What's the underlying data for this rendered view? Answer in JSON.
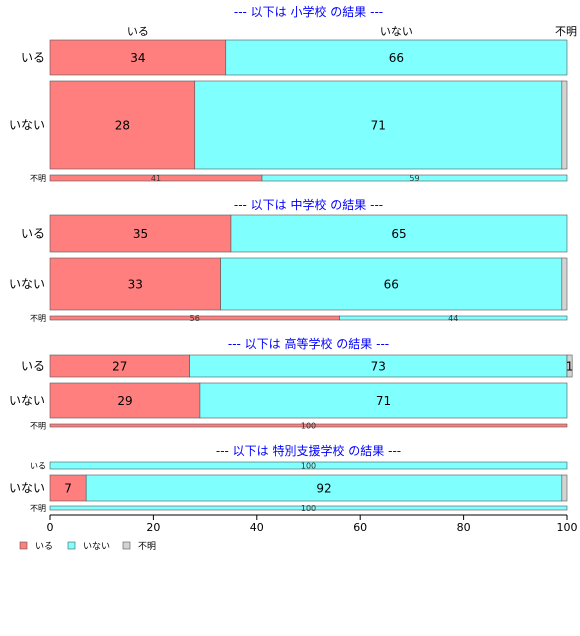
{
  "chart_data": {
    "type": "bar",
    "stacked": true,
    "orientation": "horizontal",
    "normalized_percent": true,
    "series_names": [
      "いる",
      "いない",
      "不明"
    ],
    "colors": {
      "いる": "#ff7f7f",
      "いない": "#80ffff",
      "不明": "#d3d3d3",
      "title": "#0000ff"
    },
    "column_labels": [
      "いる",
      "いない",
      "不明"
    ],
    "xlim": [
      0,
      100
    ],
    "x_ticks": [
      0,
      20,
      40,
      60,
      80,
      100
    ],
    "legend": {
      "position": "bottom-left",
      "entries": [
        "いる",
        "いない",
        "不明"
      ]
    },
    "panels": [
      {
        "title": "--- 以下は 小学校 の結果 ---",
        "rows": [
          {
            "label": "いる",
            "values": [
              34,
              66,
              0
            ],
            "labels": [
              "34",
              "66",
              ""
            ]
          },
          {
            "label": "いない",
            "values": [
              28,
              71,
              1
            ],
            "labels": [
              "28",
              "71",
              ""
            ]
          },
          {
            "label": "不明",
            "values": [
              41,
              59,
              0
            ],
            "labels": [
              "41",
              "59",
              ""
            ]
          }
        ]
      },
      {
        "title": "--- 以下は 中学校 の結果 ---",
        "rows": [
          {
            "label": "いる",
            "values": [
              35,
              65,
              0
            ],
            "labels": [
              "35",
              "65",
              ""
            ]
          },
          {
            "label": "いない",
            "values": [
              33,
              66,
              1
            ],
            "labels": [
              "33",
              "66",
              ""
            ]
          },
          {
            "label": "不明",
            "values": [
              56,
              44,
              0
            ],
            "labels": [
              "56",
              "44",
              ""
            ]
          }
        ]
      },
      {
        "title": "--- 以下は 高等学校 の結果 ---",
        "rows": [
          {
            "label": "いる",
            "values": [
              27,
              73,
              1
            ],
            "labels": [
              "27",
              "73",
              "1"
            ]
          },
          {
            "label": "いない",
            "values": [
              29,
              71,
              0
            ],
            "labels": [
              "29",
              "71",
              ""
            ]
          },
          {
            "label": "不明",
            "values": [
              100,
              0,
              0
            ],
            "labels": [
              "100",
              "",
              ""
            ]
          }
        ]
      },
      {
        "title": "--- 以下は 特別支援学校 の結果 ---",
        "rows": [
          {
            "label": "いる",
            "values": [
              0,
              100,
              0
            ],
            "labels": [
              "",
              "100",
              ""
            ]
          },
          {
            "label": "いない",
            "values": [
              7,
              92,
              1
            ],
            "labels": [
              "7",
              "92",
              ""
            ]
          },
          {
            "label": "不明",
            "values": [
              0,
              100,
              0
            ],
            "labels": [
              "",
              "100",
              ""
            ]
          }
        ]
      }
    ]
  }
}
